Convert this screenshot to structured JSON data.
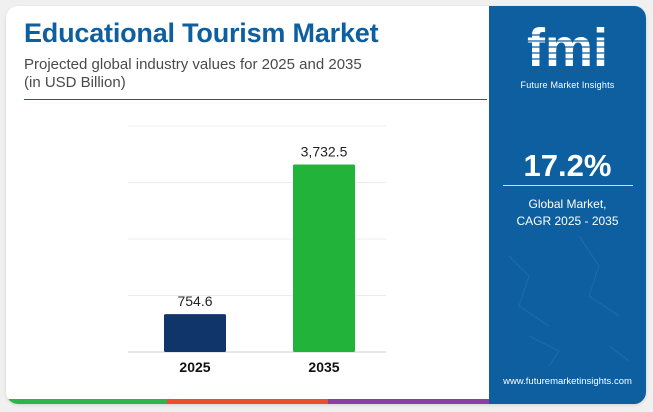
{
  "title": "Educational Tourism Market",
  "subtitle_line1": "Projected global industry values for 2025 and 2035",
  "subtitle_line2": "(in USD Billion)",
  "sidebar": {
    "logo_text": "fmi",
    "logo_caption": "Future Market Insights",
    "cagr_value": "17.2%",
    "cagr_label_line1": "Global Market,",
    "cagr_label_line2": "CAGR 2025 - 2035",
    "website": "www.futuremarketinsights.com"
  },
  "colors": {
    "brand_blue": "#0d5fa0",
    "bar_2025": "#10356b",
    "bar_2035": "#22b33a",
    "stripe": [
      "#2fb44a",
      "#e8512a",
      "#8a3fa5"
    ]
  },
  "chart_data": {
    "type": "bar",
    "categories": [
      "2025",
      "2035"
    ],
    "values": [
      754.6,
      3732.5
    ],
    "value_labels": [
      "754.6",
      "3,732.5"
    ],
    "ylim": [
      0,
      4500
    ],
    "grid": true,
    "title": "Educational Tourism Market",
    "xlabel": "",
    "ylabel": ""
  }
}
